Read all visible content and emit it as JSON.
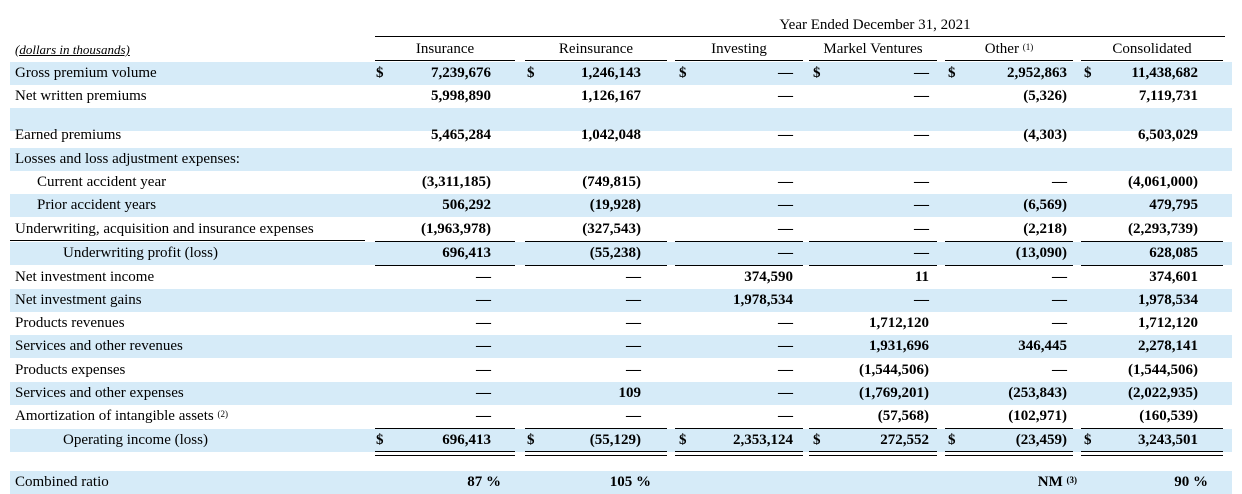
{
  "header": {
    "period": "Year Ended December 31, 2021",
    "units_label": "(dollars in thousands)",
    "columns": [
      {
        "label": "Insurance",
        "note": ""
      },
      {
        "label": "Reinsurance",
        "note": ""
      },
      {
        "label": "Investing",
        "note": ""
      },
      {
        "label": "Markel Ventures",
        "note": ""
      },
      {
        "label": "Other",
        "note": "(1)"
      },
      {
        "label": "Consolidated",
        "note": ""
      }
    ]
  },
  "rows": [
    {
      "label": "Gross premium volume",
      "note": "",
      "values": [
        "7,239,676",
        "1,246,143",
        "—",
        "—",
        "2,952,863",
        "11,438,682"
      ],
      "dollar": true
    },
    {
      "label": "Net written premiums",
      "note": "",
      "values": [
        "5,998,890",
        "1,126,167",
        "—",
        "—",
        "(5,326)",
        "7,119,731"
      ]
    },
    {
      "label": "",
      "note": "",
      "values": [
        "",
        "",
        "",
        "",
        "",
        ""
      ]
    },
    {
      "label": "Earned premiums",
      "note": "",
      "values": [
        "5,465,284",
        "1,042,048",
        "—",
        "—",
        "(4,303)",
        "6,503,029"
      ]
    },
    {
      "label": "Losses and loss adjustment expenses:",
      "note": "",
      "values": [
        "",
        "",
        "",
        "",
        "",
        ""
      ]
    },
    {
      "label": "Current accident year",
      "note": "",
      "values": [
        "(3,311,185)",
        "(749,815)",
        "—",
        "—",
        "—",
        "(4,061,000)"
      ]
    },
    {
      "label": "Prior accident years",
      "note": "",
      "values": [
        "506,292",
        "(19,928)",
        "—",
        "—",
        "(6,569)",
        "479,795"
      ]
    },
    {
      "label": "Underwriting, acquisition and insurance expenses",
      "note": "",
      "values": [
        "(1,963,978)",
        "(327,543)",
        "—",
        "—",
        "(2,218)",
        "(2,293,739)"
      ]
    },
    {
      "label": "Underwriting profit (loss)",
      "note": "",
      "values": [
        "696,413",
        "(55,238)",
        "—",
        "—",
        "(13,090)",
        "628,085"
      ]
    },
    {
      "label": "Net investment income",
      "note": "",
      "values": [
        "—",
        "—",
        "374,590",
        "11",
        "—",
        "374,601"
      ]
    },
    {
      "label": "Net investment gains",
      "note": "",
      "values": [
        "—",
        "—",
        "1,978,534",
        "—",
        "—",
        "1,978,534"
      ]
    },
    {
      "label": "Products revenues",
      "note": "",
      "values": [
        "—",
        "—",
        "—",
        "1,712,120",
        "—",
        "1,712,120"
      ]
    },
    {
      "label": "Services and other revenues",
      "note": "",
      "values": [
        "—",
        "—",
        "—",
        "1,931,696",
        "346,445",
        "2,278,141"
      ]
    },
    {
      "label": "Products expenses",
      "note": "",
      "values": [
        "—",
        "—",
        "—",
        "(1,544,506)",
        "—",
        "(1,544,506)"
      ]
    },
    {
      "label": "Services and other expenses",
      "note": "",
      "values": [
        "—",
        "109",
        "—",
        "(1,769,201)",
        "(253,843)",
        "(2,022,935)"
      ]
    },
    {
      "label": "Amortization of intangible assets",
      "note": "(2)",
      "values": [
        "—",
        "—",
        "—",
        "(57,568)",
        "(102,971)",
        "(160,539)"
      ]
    },
    {
      "label": "Operating income (loss)",
      "note": "",
      "values": [
        "696,413",
        "(55,129)",
        "2,353,124",
        "272,552",
        "(23,459)",
        "3,243,501"
      ],
      "dollar": true
    },
    {
      "label": "",
      "note": "",
      "values": [
        "",
        "",
        "",
        "",
        "",
        ""
      ]
    },
    {
      "label": "Combined ratio",
      "note": "",
      "values": [
        "87 %",
        "105 %",
        "",
        "",
        "NM",
        "90 %"
      ],
      "notes": [
        "",
        "",
        "",
        "",
        "(3)",
        ""
      ]
    }
  ],
  "currency_symbol": "$",
  "colors": {
    "shade": "#d6ebf8"
  }
}
